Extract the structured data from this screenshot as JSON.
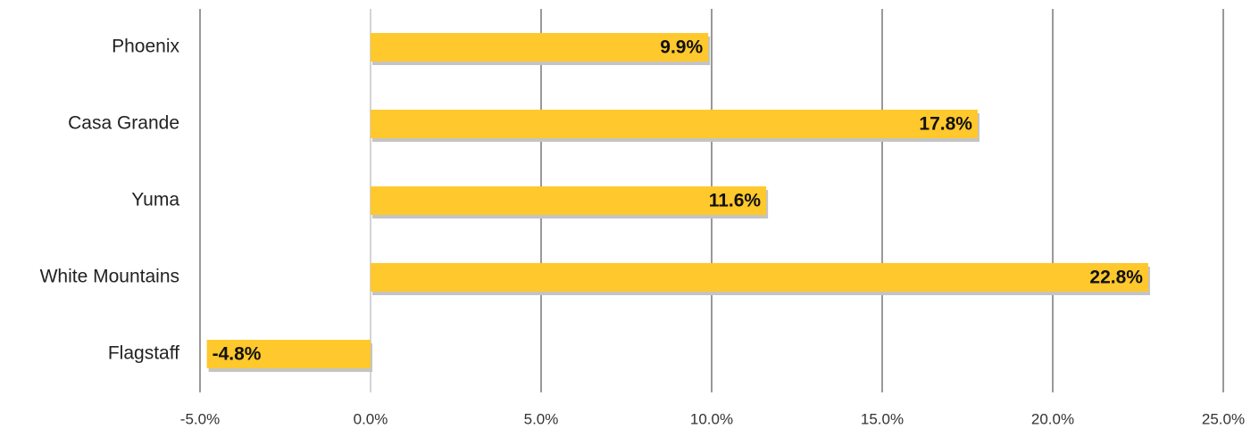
{
  "chart_data": {
    "type": "bar",
    "orientation": "horizontal",
    "categories": [
      "Phoenix",
      "Casa Grande",
      "Yuma",
      "White Mountains",
      "Flagstaff"
    ],
    "values": [
      9.9,
      17.8,
      11.6,
      22.8,
      -4.8
    ],
    "value_labels": [
      "9.9%",
      "17.8%",
      "11.6%",
      "22.8%",
      "-4.8%"
    ],
    "color": "#ffc82c",
    "xlim": [
      -5,
      25
    ],
    "xticks": [
      {
        "value": -5,
        "label": "-5.0%"
      },
      {
        "value": 0,
        "label": "0.0%"
      },
      {
        "value": 5,
        "label": "5.0%"
      },
      {
        "value": 10,
        "label": "10.0%"
      },
      {
        "value": 15,
        "label": "15.0%"
      },
      {
        "value": 20,
        "label": "20.0%"
      },
      {
        "value": 25,
        "label": "25.0%"
      }
    ],
    "grid": true
  }
}
